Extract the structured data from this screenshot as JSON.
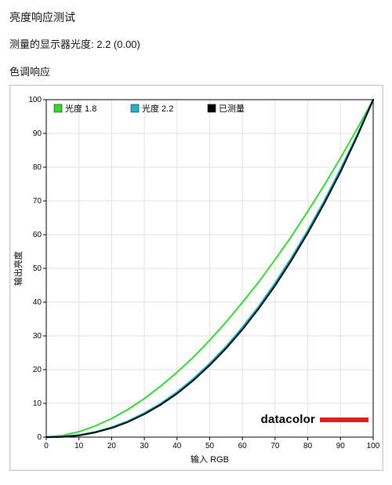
{
  "title": "亮度响应测试",
  "measured_line": "测量的显示器光度: 2.2 (0.00)",
  "section": "色调响应",
  "chart": {
    "type": "line",
    "xlabel": "输入 RGB",
    "ylabel": "输出亮度",
    "xlim": [
      0,
      100
    ],
    "ylim": [
      0,
      100
    ],
    "xtick_step": 10,
    "ytick_step": 10,
    "background_color": "#ffffff",
    "grid_color": "#e2e2e2",
    "axis_color": "#000000",
    "tick_font_size": 10,
    "label_font_size": 11,
    "legend": {
      "position": "top-left",
      "font_size": 11,
      "items": [
        {
          "label": "光度 1.8",
          "color": "#37d637",
          "swatch": "square"
        },
        {
          "label": "光度 2.2",
          "color": "#1db8c8",
          "swatch": "square"
        },
        {
          "label": "已测量",
          "color": "#000000",
          "swatch": "square"
        }
      ]
    },
    "series": [
      {
        "name": "gamma_1_8",
        "label": "光度 1.8",
        "color": "#37d637",
        "line_width": 2,
        "x": [
          0,
          5,
          10,
          15,
          20,
          25,
          30,
          35,
          40,
          45,
          50,
          55,
          60,
          65,
          70,
          75,
          80,
          85,
          90,
          95,
          100
        ],
        "y": [
          0,
          0.5,
          1.6,
          3.3,
          5.5,
          8.2,
          11.4,
          15.1,
          19.2,
          23.7,
          28.7,
          34.1,
          39.9,
          46.0,
          52.6,
          59.5,
          66.9,
          74.6,
          82.7,
          91.2,
          100
        ]
      },
      {
        "name": "gamma_2_2",
        "label": "光度 2.2",
        "color": "#1db8c8",
        "line_width": 2.5,
        "x": [
          0,
          5,
          10,
          15,
          20,
          25,
          30,
          35,
          40,
          45,
          50,
          55,
          60,
          65,
          70,
          75,
          80,
          85,
          90,
          95,
          100
        ],
        "y": [
          0,
          0.1,
          0.6,
          1.5,
          2.9,
          4.7,
          7.1,
          9.9,
          13.3,
          17.3,
          21.8,
          26.8,
          32.5,
          38.7,
          45.6,
          53.1,
          61.2,
          69.9,
          79.3,
          89.3,
          100
        ]
      },
      {
        "name": "measured",
        "label": "已测量",
        "color": "#000000",
        "line_width": 2,
        "x": [
          0,
          5,
          10,
          15,
          20,
          25,
          30,
          35,
          40,
          45,
          50,
          55,
          60,
          65,
          70,
          75,
          80,
          85,
          90,
          95,
          100
        ],
        "y": [
          0,
          0.1,
          0.5,
          1.4,
          2.7,
          4.5,
          6.8,
          9.6,
          12.9,
          16.8,
          21.3,
          26.3,
          31.9,
          38.1,
          44.9,
          52.4,
          60.5,
          69.2,
          78.6,
          88.9,
          100
        ]
      }
    ],
    "brand": {
      "text": "datacolor",
      "bar_color": "#e02020"
    }
  }
}
